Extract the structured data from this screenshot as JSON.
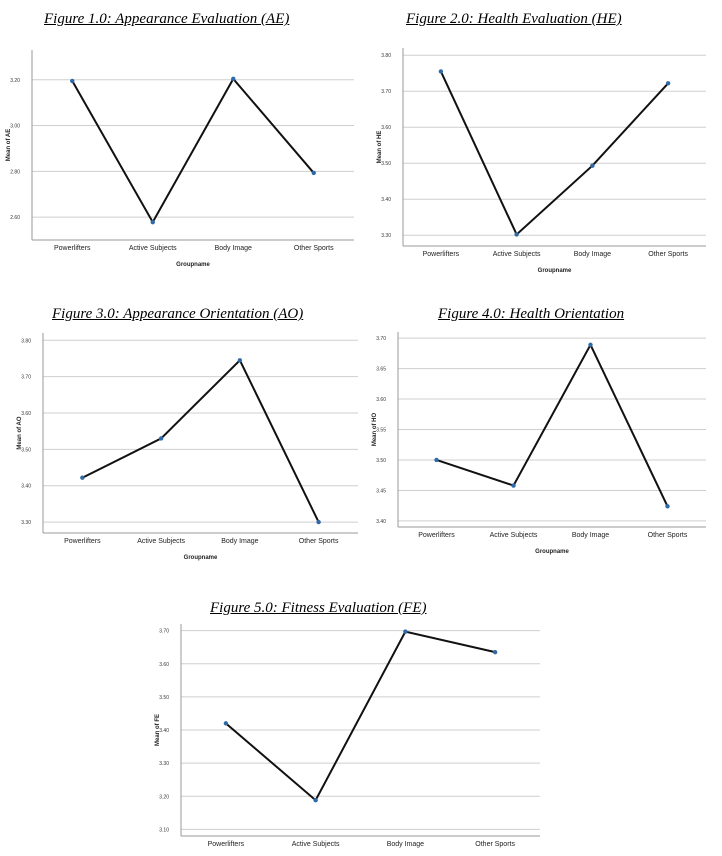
{
  "chart_data": [
    {
      "type": "line",
      "title": "Figure 1.0: Appearance Evaluation (AE)",
      "categories": [
        "Powerlifters",
        "Active Subjects",
        "Body Image",
        "Other Sports"
      ],
      "series": [
        {
          "values": [
            3.195,
            2.578,
            3.204,
            2.793
          ]
        }
      ],
      "xlabel": "Groupname",
      "ylabel": "Mean of AE",
      "yticks": [
        2.6,
        2.8,
        3.0,
        3.2
      ],
      "ytick_labels": [
        "2.60",
        "2.80",
        "3.00",
        "3.20"
      ],
      "ylim": [
        2.5,
        3.33
      ],
      "grid": true,
      "line_color": "#111111",
      "marker_color": "#2f6aa8"
    },
    {
      "type": "line",
      "title": "Figure 2.0: Health Evaluation (HE)",
      "categories": [
        "Powerlifters",
        "Active Subjects",
        "Body Image",
        "Other Sports"
      ],
      "series": [
        {
          "values": [
            3.755,
            3.302,
            3.493,
            3.722
          ]
        }
      ],
      "xlabel": "Groupname",
      "ylabel": "Mean of HE",
      "yticks": [
        3.3,
        3.4,
        3.5,
        3.6,
        3.7,
        3.8
      ],
      "ytick_labels": [
        "3.30",
        "3.40",
        "3.50",
        "3.60",
        "3.70",
        "3.80"
      ],
      "ylim": [
        3.27,
        3.82
      ],
      "grid": true,
      "line_color": "#111111",
      "marker_color": "#2f6aa8"
    },
    {
      "type": "line",
      "title": "Figure 3.0: Appearance Orientation (AO)",
      "categories": [
        "Powerlifters",
        "Active Subjects",
        "Body Image",
        "Other Sports"
      ],
      "series": [
        {
          "values": [
            3.422,
            3.53,
            3.745,
            3.3
          ]
        }
      ],
      "xlabel": "Groupname",
      "ylabel": "Mean of AO",
      "yticks": [
        3.3,
        3.4,
        3.5,
        3.6,
        3.7,
        3.8
      ],
      "ytick_labels": [
        "3.30",
        "3.40",
        "3.50",
        "3.60",
        "3.70",
        "3.80"
      ],
      "ylim": [
        3.27,
        3.82
      ],
      "grid": true,
      "line_color": "#111111",
      "marker_color": "#2f6aa8"
    },
    {
      "type": "line",
      "title": "Figure 4.0: Health Orientation",
      "categories": [
        "Powerlifters",
        "Active Subjects",
        "Body Image",
        "Other Sports"
      ],
      "series": [
        {
          "values": [
            3.5,
            3.458,
            3.689,
            3.424
          ]
        }
      ],
      "xlabel": "Groupname",
      "ylabel": "Mean of HO",
      "yticks": [
        3.4,
        3.45,
        3.5,
        3.55,
        3.6,
        3.65,
        3.7
      ],
      "ytick_labels": [
        "3.40",
        "3.45",
        "3.50",
        "3.55",
        "3.60",
        "3.65",
        "3.70"
      ],
      "ylim": [
        3.39,
        3.71
      ],
      "grid": true,
      "line_color": "#111111",
      "marker_color": "#2f6aa8"
    },
    {
      "type": "line",
      "title": "Figure 5.0: Fitness Evaluation (FE)",
      "categories": [
        "Powerlifters",
        "Active Subjects",
        "Body Image",
        "Other Sports"
      ],
      "series": [
        {
          "values": [
            3.42,
            3.188,
            3.697,
            3.635
          ]
        }
      ],
      "xlabel": "",
      "ylabel": "Mean of FE",
      "yticks": [
        3.1,
        3.2,
        3.3,
        3.4,
        3.5,
        3.6,
        3.7
      ],
      "ytick_labels": [
        "3.10",
        "3.20",
        "3.30",
        "3.40",
        "3.50",
        "3.60",
        "3.70"
      ],
      "ylim": [
        3.08,
        3.72
      ],
      "grid": true,
      "line_color": "#111111",
      "marker_color": "#2f6aa8"
    }
  ]
}
